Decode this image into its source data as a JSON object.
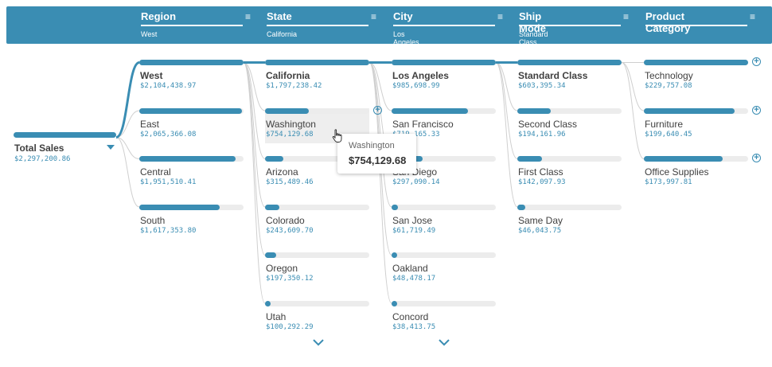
{
  "header": {
    "columns": [
      {
        "title": "Region",
        "subtitle": "West"
      },
      {
        "title": "State",
        "subtitle": "California"
      },
      {
        "title": "City",
        "subtitle": "Los Angeles"
      },
      {
        "title": "Ship Mode",
        "subtitle": "Standard Class"
      },
      {
        "title": "Product Category",
        "subtitle": ""
      }
    ],
    "menu_icon": "hamburger-menu-icon"
  },
  "root": {
    "label": "Total Sales",
    "value": "$2,297,200.86",
    "amount": 2297200.86,
    "expand_icon": "caret-down-icon"
  },
  "tree": [
    {
      "name": "region",
      "nodes": [
        {
          "label": "West",
          "value": "$2,104,438.97",
          "amount": 2104438.97,
          "selected": true
        },
        {
          "label": "East",
          "value": "$2,065,366.08",
          "amount": 2065366.08
        },
        {
          "label": "Central",
          "value": "$1,951,510.41",
          "amount": 1951510.41
        },
        {
          "label": "South",
          "value": "$1,617,353.80",
          "amount": 1617353.8
        }
      ]
    },
    {
      "name": "state",
      "nodes": [
        {
          "label": "California",
          "value": "$1,797,238.42",
          "amount": 1797238.42,
          "selected": true
        },
        {
          "label": "Washington",
          "value": "$754,129.68",
          "amount": 754129.68,
          "hovered": true
        },
        {
          "label": "Arizona",
          "value": "$315,489.46",
          "amount": 315489.46
        },
        {
          "label": "Colorado",
          "value": "$243,609.70",
          "amount": 243609.7
        },
        {
          "label": "Oregon",
          "value": "$197,350.12",
          "amount": 197350.12
        },
        {
          "label": "Utah",
          "value": "$100,292.29",
          "amount": 100292.29
        }
      ]
    },
    {
      "name": "city",
      "nodes": [
        {
          "label": "Los Angeles",
          "value": "$985,698.99",
          "amount": 985698.99,
          "selected": true
        },
        {
          "label": "San Francisco",
          "value": "$719,165.33",
          "amount": 719165.33
        },
        {
          "label": "San Diego",
          "value": "$297,090.14",
          "amount": 297090.14
        },
        {
          "label": "San Jose",
          "value": "$61,719.49",
          "amount": 61719.49
        },
        {
          "label": "Oakland",
          "value": "$48,478.17",
          "amount": 48478.17
        },
        {
          "label": "Concord",
          "value": "$38,413.75",
          "amount": 38413.75
        }
      ]
    },
    {
      "name": "ship-mode",
      "nodes": [
        {
          "label": "Standard Class",
          "value": "$603,395.34",
          "amount": 603395.34,
          "selected": true
        },
        {
          "label": "Second Class",
          "value": "$194,161.96",
          "amount": 194161.96
        },
        {
          "label": "First Class",
          "value": "$142,097.93",
          "amount": 142097.93
        },
        {
          "label": "Same Day",
          "value": "$46,043.75",
          "amount": 46043.75
        }
      ]
    },
    {
      "name": "product-category",
      "nodes": [
        {
          "label": "Technology",
          "value": "$229,757.08",
          "amount": 229757.08
        },
        {
          "label": "Furniture",
          "value": "$199,640.45",
          "amount": 199640.45
        },
        {
          "label": "Office Supplies",
          "value": "$173,997.81",
          "amount": 173997.81
        }
      ]
    }
  ],
  "tooltip": {
    "title": "Washington",
    "value": "$754,129.68"
  },
  "icons": {
    "expand": "plus-circle-icon",
    "more": "chevron-down-icon",
    "cursor": "hand-pointer-icon"
  },
  "colors": {
    "accent": "#3a8db3",
    "track": "#ececec",
    "link": "#cfcfcf",
    "header_text": "#ffffff"
  }
}
